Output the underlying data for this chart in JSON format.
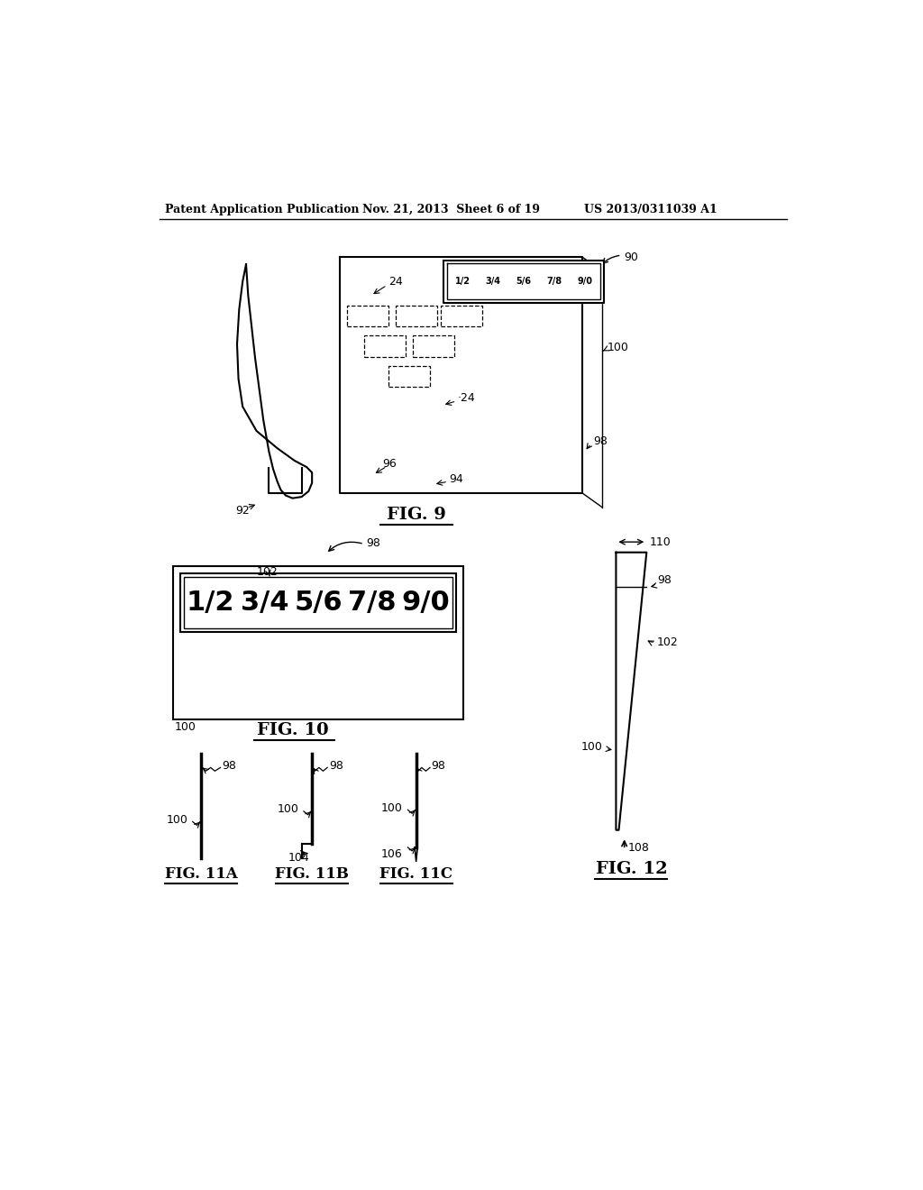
{
  "header_left": "Patent Application Publication",
  "header_mid": "Nov. 21, 2013  Sheet 6 of 19",
  "header_right": "US 2013/0311039 A1",
  "bg_color": "#ffffff",
  "line_color": "#000000"
}
